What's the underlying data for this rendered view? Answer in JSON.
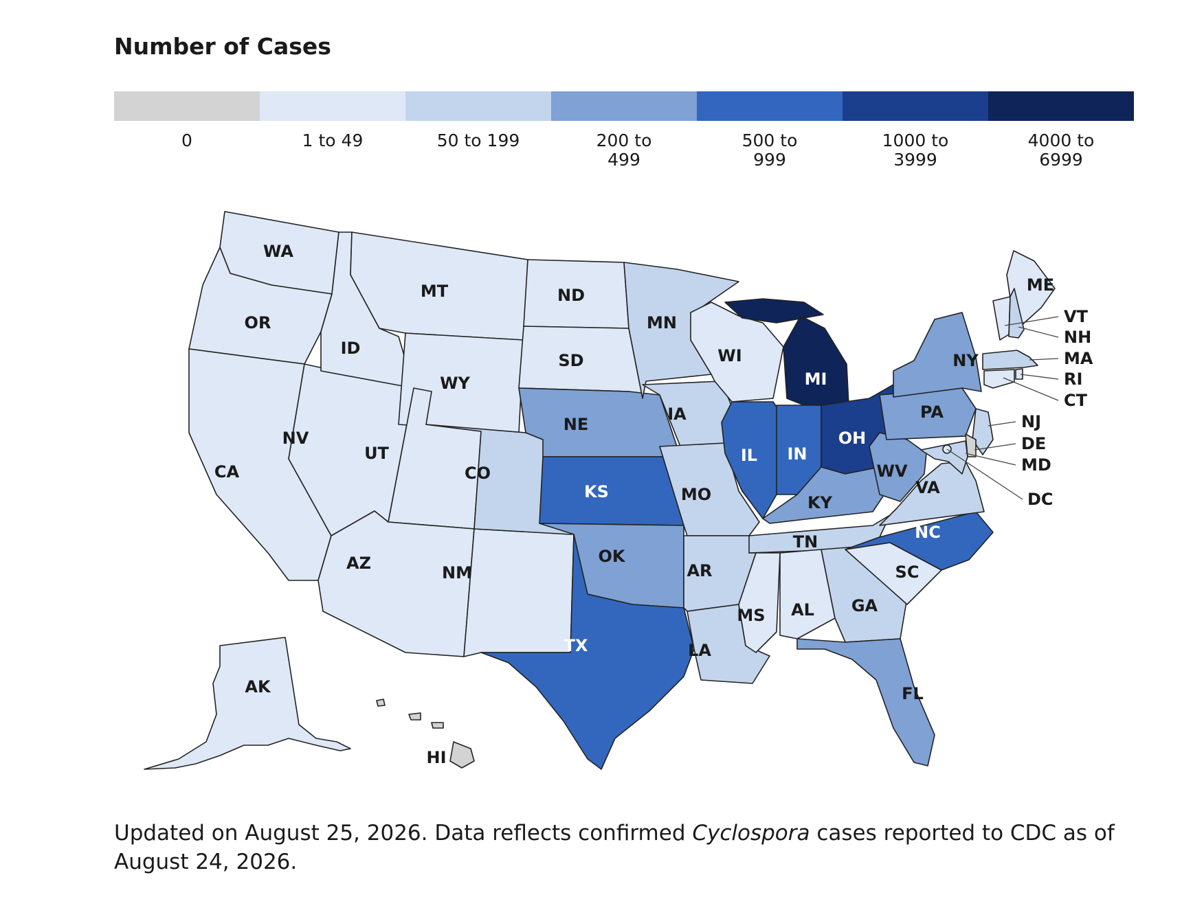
{
  "legend": {
    "title": "Number of Cases",
    "bins": [
      {
        "label": "0",
        "color": "#d3d3d3"
      },
      {
        "label": "1 to 49",
        "color": "#dee8f6"
      },
      {
        "label": "50 to 199",
        "color": "#c3d5ec"
      },
      {
        "label": "200 to 499",
        "color": "#7fa1d4"
      },
      {
        "label": "500 to 999",
        "color": "#3267bd"
      },
      {
        "label": "1000 to 3999",
        "color": "#1b3f8c"
      },
      {
        "label": "4000 to 6999",
        "color": "#0f2458"
      }
    ]
  },
  "state_bins": {
    "WA": 1,
    "OR": 1,
    "CA": 1,
    "NV": 1,
    "ID": 1,
    "MT": 1,
    "WY": 1,
    "UT": 1,
    "AZ": 1,
    "NM": 1,
    "CO": 2,
    "ND": 1,
    "SD": 1,
    "NE": 3,
    "KS": 4,
    "OK": 3,
    "TX": 4,
    "MN": 2,
    "IA": 2,
    "MO": 2,
    "AR": 2,
    "LA": 2,
    "WI": 1,
    "IL": 4,
    "MI": 6,
    "IN": 4,
    "OH": 5,
    "KY": 3,
    "TN": 2,
    "MS": 1,
    "AL": 1,
    "GA": 2,
    "FL": 3,
    "SC": 1,
    "NC": 4,
    "VA": 2,
    "WV": 3,
    "PA": 3,
    "NY": 3,
    "ME": 1,
    "VT": 1,
    "NH": 2,
    "MA": 2,
    "RI": 1,
    "CT": 1,
    "NJ": 2,
    "DE": 0,
    "MD": 2,
    "DC": 1,
    "AK": 1,
    "HI": 0
  },
  "state_labels": {
    "WA": "WA",
    "OR": "OR",
    "CA": "CA",
    "NV": "NV",
    "ID": "ID",
    "MT": "MT",
    "WY": "WY",
    "UT": "UT",
    "AZ": "AZ",
    "NM": "NM",
    "CO": "CO",
    "ND": "ND",
    "SD": "SD",
    "NE": "NE",
    "KS": "KS",
    "OK": "OK",
    "TX": "TX",
    "MN": "MN",
    "IA": "IA",
    "MO": "MO",
    "AR": "AR",
    "LA": "LA",
    "WI": "WI",
    "IL": "IL",
    "MI": "MI",
    "IN": "IN",
    "OH": "OH",
    "KY": "KY",
    "TN": "TN",
    "MS": "MS",
    "AL": "AL",
    "GA": "GA",
    "FL": "FL",
    "SC": "SC",
    "NC": "NC",
    "VA": "VA",
    "WV": "WV",
    "PA": "PA",
    "NY": "NY",
    "ME": "ME",
    "VT": "VT",
    "NH": "NH",
    "MA": "MA",
    "RI": "RI",
    "CT": "CT",
    "NJ": "NJ",
    "DE": "DE",
    "MD": "MD",
    "DC": "DC",
    "AK": "AK",
    "HI": "HI"
  },
  "footer": {
    "prefix": "Updated on August 25, 2026. Data reflects confirmed ",
    "italic": "Cyclospora",
    "suffix": " cases reported to CDC as of August 24, 2026."
  }
}
